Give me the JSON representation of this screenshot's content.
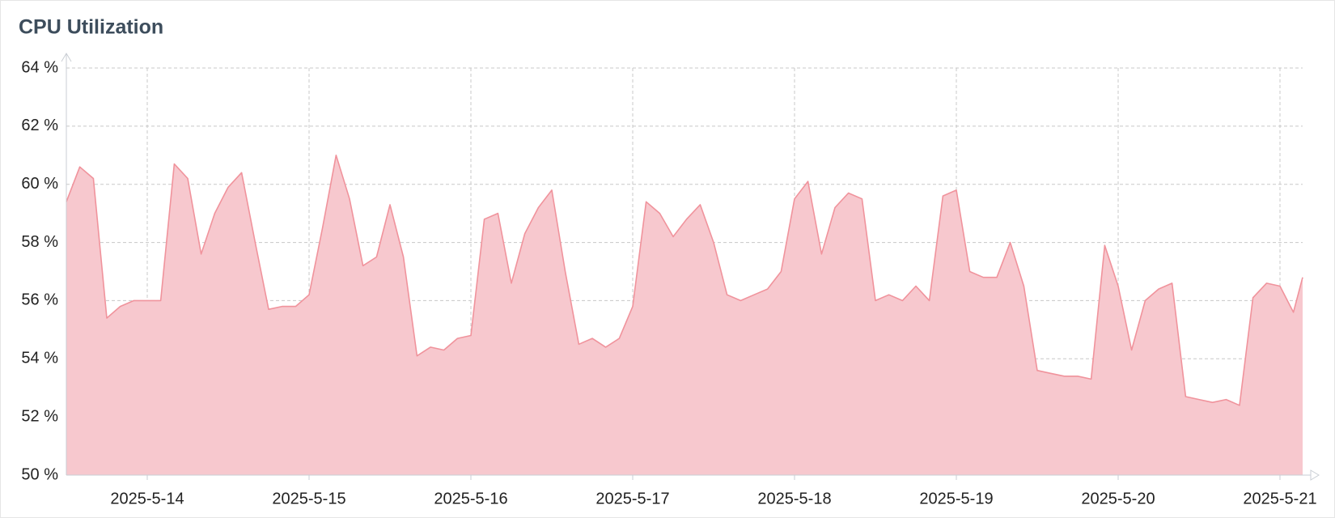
{
  "chart_data": {
    "type": "area",
    "title": "CPU Utilization",
    "x": [
      13.5,
      13.583,
      13.667,
      13.75,
      13.833,
      13.917,
      14,
      14.083,
      14.167,
      14.25,
      14.333,
      14.417,
      14.5,
      14.583,
      14.667,
      14.75,
      14.833,
      14.917,
      15,
      15.083,
      15.167,
      15.25,
      15.333,
      15.417,
      15.5,
      15.583,
      15.667,
      15.75,
      15.833,
      15.917,
      16,
      16.083,
      16.167,
      16.25,
      16.333,
      16.417,
      16.5,
      16.583,
      16.667,
      16.75,
      16.833,
      16.917,
      17,
      17.083,
      17.167,
      17.25,
      17.333,
      17.417,
      17.5,
      17.583,
      17.667,
      17.75,
      17.833,
      17.917,
      18,
      18.083,
      18.167,
      18.25,
      18.333,
      18.417,
      18.5,
      18.583,
      18.667,
      18.75,
      18.833,
      18.917,
      19,
      19.083,
      19.167,
      19.25,
      19.333,
      19.417,
      19.5,
      19.583,
      19.667,
      19.75,
      19.833,
      19.917,
      20,
      20.083,
      20.167,
      20.25,
      20.333,
      20.417,
      20.5,
      20.583,
      20.667,
      20.75,
      20.833,
      20.917,
      21,
      21.083,
      21.14
    ],
    "series": [
      {
        "color": "#f0939c",
        "fill": "#f7c8ce",
        "values": [
          59.4,
          60.6,
          60.2,
          55.4,
          55.8,
          56.0,
          56.0,
          56.0,
          60.7,
          60.2,
          57.6,
          59.0,
          59.9,
          60.4,
          58.0,
          55.7,
          55.8,
          55.8,
          56.2,
          58.5,
          61.0,
          59.5,
          57.2,
          57.5,
          59.3,
          57.5,
          54.1,
          54.4,
          54.3,
          54.7,
          54.8,
          58.8,
          59.0,
          56.6,
          58.3,
          59.2,
          59.8,
          57.0,
          54.5,
          54.7,
          54.4,
          54.7,
          55.8,
          59.4,
          59.0,
          58.2,
          58.8,
          59.3,
          58.0,
          56.2,
          56.0,
          56.2,
          56.4,
          57.0,
          59.5,
          60.1,
          57.6,
          59.2,
          59.7,
          59.5,
          56.0,
          56.2,
          56.0,
          56.5,
          56.0,
          59.6,
          59.8,
          57.0,
          56.8,
          56.8,
          58.0,
          56.5,
          53.6,
          53.5,
          53.4,
          53.4,
          53.3,
          57.9,
          56.5,
          54.3,
          56.0,
          56.4,
          56.6,
          52.7,
          52.6,
          52.5,
          52.6,
          52.4,
          56.1,
          56.6,
          56.5,
          55.6,
          56.8
        ]
      }
    ],
    "xlim": [
      13.5,
      21.14
    ],
    "xticks": [
      {
        "value": 14,
        "label": "2025-5-14"
      },
      {
        "value": 15,
        "label": "2025-5-15"
      },
      {
        "value": 16,
        "label": "2025-5-16"
      },
      {
        "value": 17,
        "label": "2025-5-17"
      },
      {
        "value": 18,
        "label": "2025-5-18"
      },
      {
        "value": 19,
        "label": "2025-5-19"
      },
      {
        "value": 20,
        "label": "2025-5-20"
      },
      {
        "value": 21,
        "label": "2025-5-21"
      }
    ],
    "ylim": [
      50,
      64
    ],
    "yticks": [
      {
        "value": 50,
        "label": "50 %"
      },
      {
        "value": 52,
        "label": "52 %"
      },
      {
        "value": 54,
        "label": "54 %"
      },
      {
        "value": 56,
        "label": "56 %"
      },
      {
        "value": 58,
        "label": "58 %"
      },
      {
        "value": 60,
        "label": "60 %"
      },
      {
        "value": 62,
        "label": "62 %"
      },
      {
        "value": 64,
        "label": "64 %"
      }
    ],
    "grid": true
  }
}
